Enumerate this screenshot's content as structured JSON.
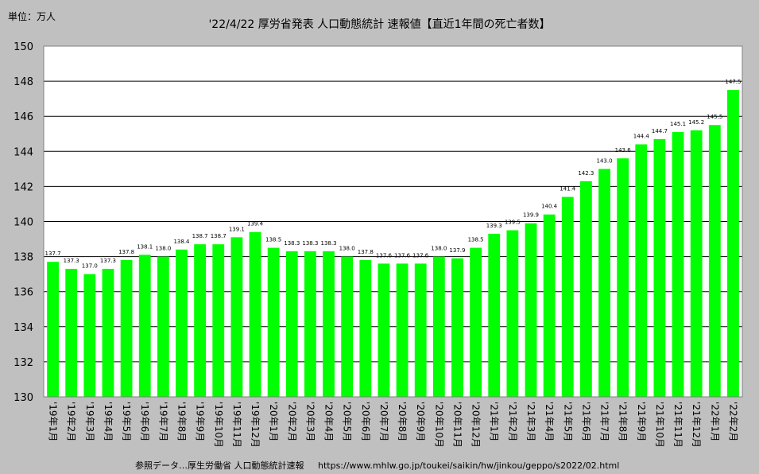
{
  "header": {
    "unit": "単位：万人",
    "title": "'22/4/22 厚労省発表 人口動態統計 速報値【直近1年間の死亡者数】"
  },
  "footer": {
    "source_label": "参照データ…厚生労働省 人口動態統計速報",
    "source_url": "https://www.mhlw.go.jp/toukei/saikin/hw/jinkou/geppo/s2022/02.html"
  },
  "colors": {
    "bar": "#00ff00",
    "plot_background": "#ffffff",
    "page_background": "#c0c0c0",
    "grid": "#000000"
  },
  "chart_data": {
    "type": "bar",
    "title": "'22/4/22 厚労省発表 人口動態統計 速報値【直近1年間の死亡者数】",
    "xlabel": "",
    "ylabel": "単位：万人",
    "ylim": [
      130,
      150
    ],
    "yticks": [
      130,
      132,
      134,
      136,
      138,
      140,
      142,
      144,
      146,
      148,
      150
    ],
    "grid": true,
    "legend": "none",
    "categories": [
      "'19年1月",
      "'19年2月",
      "'19年3月",
      "'19年4月",
      "'19年5月",
      "'19年6月",
      "'19年7月",
      "'19年8月",
      "'19年9月",
      "'19年10月",
      "'19年11月",
      "'19年12月",
      "'20年1月",
      "'20年2月",
      "'20年3月",
      "'20年4月",
      "'20年5月",
      "'20年6月",
      "'20年7月",
      "'20年8月",
      "'20年9月",
      "'20年10月",
      "'20年11月",
      "'20年12月",
      "'21年1月",
      "'21年2月",
      "'21年3月",
      "'21年4月",
      "'21年5月",
      "'21年6月",
      "'21年7月",
      "'21年8月",
      "'21年9月",
      "'21年10月",
      "'21年11月",
      "'21年12月",
      "'22年1月",
      "'22年2月"
    ],
    "values": [
      137.7,
      137.3,
      137.0,
      137.3,
      137.8,
      138.1,
      138.0,
      138.4,
      138.7,
      138.7,
      139.1,
      139.4,
      138.5,
      138.3,
      138.3,
      138.3,
      138.0,
      137.8,
      137.6,
      137.6,
      137.6,
      138.0,
      137.9,
      138.5,
      139.3,
      139.5,
      139.9,
      140.4,
      141.4,
      142.3,
      143.0,
      143.6,
      144.4,
      144.7,
      145.1,
      145.2,
      145.5,
      147.5
    ]
  }
}
